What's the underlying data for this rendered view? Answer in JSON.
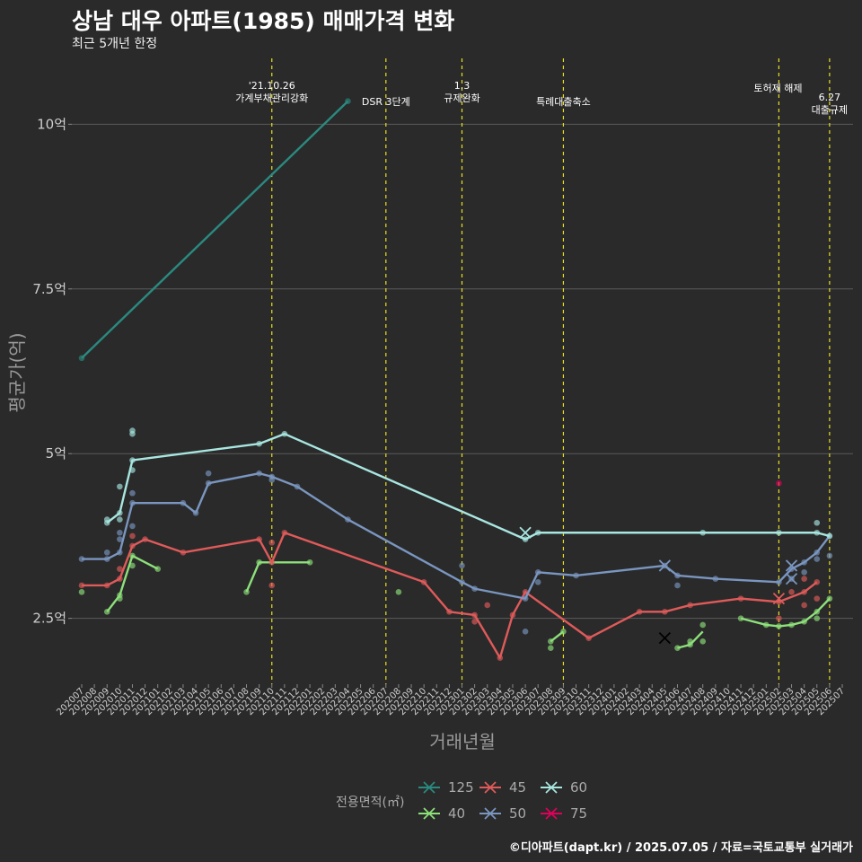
{
  "title": "상남 대우 아파트(1985) 매매가격 변화",
  "subtitle": "최근 5개년 한정",
  "caption": "©디아파트(dapt.kr) / 2025.07.05 / 자료=국토교통부 실거래가",
  "chart_data": {
    "type": "line",
    "title": "상남 대우 아파트(1985) 매매가격 변화",
    "subtitle": "최근 5개년 한정",
    "xlabel": "거래년월",
    "ylabel": "평균가(억)",
    "ylim": [
      1.5,
      11.0
    ],
    "yticks": [
      2.5,
      5,
      7.5,
      10
    ],
    "yticklabels": [
      "2.5억",
      "5억",
      "7.5억",
      "10억"
    ],
    "x_months": [
      "202007",
      "202008",
      "202009",
      "202010",
      "202011",
      "202012",
      "202101",
      "202102",
      "202103",
      "202104",
      "202105",
      "202106",
      "202107",
      "202108",
      "202109",
      "202110",
      "202111",
      "202112",
      "202201",
      "202202",
      "202203",
      "202204",
      "202205",
      "202206",
      "202207",
      "202208",
      "202209",
      "202210",
      "202211",
      "202212",
      "202301",
      "202302",
      "202303",
      "202304",
      "202305",
      "202306",
      "202307",
      "202308",
      "202309",
      "202310",
      "202311",
      "202312",
      "202401",
      "202402",
      "202403",
      "202404",
      "202405",
      "202406",
      "202407",
      "202408",
      "202409",
      "202410",
      "202411",
      "202412",
      "202501",
      "202502",
      "202503",
      "202504",
      "202505",
      "202506",
      "202507"
    ],
    "legend_title": "전용면적(㎡)",
    "events": [
      {
        "month": 15,
        "label": "'21.10.26\n가계부채관리강화"
      },
      {
        "month": 24,
        "label": "DSR 3단계"
      },
      {
        "month": 30,
        "label": "1.3\n규제완화"
      },
      {
        "month": 38,
        "label": "특례대출축소"
      },
      {
        "month": 55,
        "label": "토허제 해제"
      },
      {
        "month": 59,
        "label": "6.27\n대출규제"
      }
    ],
    "series": [
      {
        "name": "125",
        "color": "#2a8a80",
        "line": [
          [
            0,
            6.45
          ],
          [
            21,
            10.35
          ]
        ],
        "points": [
          [
            0,
            6.45
          ],
          [
            21,
            10.35
          ]
        ],
        "crosses": []
      },
      {
        "name": "40",
        "color": "#8de07a",
        "line": [
          [
            2,
            2.6
          ],
          [
            3,
            2.85
          ],
          [
            4,
            3.45
          ],
          [
            6,
            3.25
          ],
          null,
          [
            13,
            2.9
          ],
          [
            14,
            3.35
          ],
          [
            18,
            3.35
          ],
          null,
          [
            37,
            2.15
          ],
          [
            38,
            2.3
          ],
          null,
          [
            47,
            2.05
          ],
          [
            48,
            2.1
          ],
          [
            49,
            2.3
          ],
          null,
          [
            52,
            2.5
          ],
          [
            54,
            2.4
          ],
          [
            55,
            2.38
          ],
          [
            56,
            2.4
          ],
          [
            57,
            2.45
          ],
          [
            58,
            2.6
          ],
          [
            59,
            2.8
          ]
        ],
        "points": [
          [
            0,
            2.9
          ],
          [
            2,
            2.6
          ],
          [
            3,
            2.8
          ],
          [
            3,
            2.85
          ],
          [
            4,
            3.3
          ],
          [
            4,
            3.45
          ],
          [
            6,
            3.25
          ],
          [
            13,
            2.9
          ],
          [
            14,
            3.35
          ],
          [
            18,
            3.35
          ],
          [
            25,
            2.9
          ],
          [
            37,
            2.15
          ],
          [
            37,
            2.05
          ],
          [
            38,
            2.3
          ],
          [
            47,
            2.05
          ],
          [
            48,
            2.1
          ],
          [
            48,
            2.15
          ],
          [
            49,
            2.15
          ],
          [
            49,
            2.4
          ],
          [
            52,
            2.5
          ],
          [
            54,
            2.4
          ],
          [
            55,
            2.38
          ],
          [
            56,
            2.4
          ],
          [
            57,
            2.45
          ],
          [
            58,
            2.6
          ],
          [
            58,
            2.5
          ],
          [
            59,
            2.8
          ]
        ],
        "crosses": []
      },
      {
        "name": "45",
        "color": "#e05a5a",
        "line": [
          [
            0,
            3.0
          ],
          [
            2,
            3.0
          ],
          [
            3,
            3.1
          ],
          [
            4,
            3.6
          ],
          [
            5,
            3.7
          ],
          [
            8,
            3.5
          ],
          [
            14,
            3.7
          ],
          [
            15,
            3.35
          ],
          [
            16,
            3.8
          ],
          [
            27,
            3.05
          ],
          [
            29,
            2.6
          ],
          [
            31,
            2.55
          ],
          [
            33,
            1.9
          ],
          [
            34,
            2.55
          ],
          [
            35,
            2.9
          ],
          [
            40,
            2.2
          ],
          [
            44,
            2.6
          ],
          [
            46,
            2.6
          ],
          [
            48,
            2.7
          ],
          [
            52,
            2.8
          ],
          [
            55,
            2.75
          ],
          [
            57,
            2.9
          ],
          [
            58,
            3.05
          ]
        ],
        "points": [
          [
            0,
            3.0
          ],
          [
            2,
            3.0
          ],
          [
            3,
            3.1
          ],
          [
            3,
            3.25
          ],
          [
            4,
            3.6
          ],
          [
            4,
            3.75
          ],
          [
            5,
            3.7
          ],
          [
            8,
            3.5
          ],
          [
            14,
            3.7
          ],
          [
            15,
            3.65
          ],
          [
            15,
            3.35
          ],
          [
            15,
            3.0
          ],
          [
            16,
            3.8
          ],
          [
            27,
            3.05
          ],
          [
            29,
            2.6
          ],
          [
            31,
            2.55
          ],
          [
            31,
            2.45
          ],
          [
            32,
            2.7
          ],
          [
            33,
            1.9
          ],
          [
            34,
            2.55
          ],
          [
            35,
            2.9
          ],
          [
            40,
            2.2
          ],
          [
            44,
            2.6
          ],
          [
            46,
            2.6
          ],
          [
            48,
            2.7
          ],
          [
            52,
            2.8
          ],
          [
            55,
            2.75
          ],
          [
            55,
            2.5
          ],
          [
            56,
            2.9
          ],
          [
            57,
            2.9
          ],
          [
            57,
            2.7
          ],
          [
            57,
            3.1
          ],
          [
            58,
            3.05
          ],
          [
            58,
            2.8
          ]
        ],
        "crosses": [
          [
            55,
            2.8
          ]
        ]
      },
      {
        "name": "50",
        "color": "#7a96c0",
        "line": [
          [
            0,
            3.4
          ],
          [
            2,
            3.4
          ],
          [
            3,
            3.5
          ],
          [
            4,
            4.25
          ],
          [
            8,
            4.25
          ],
          [
            9,
            4.1
          ],
          [
            10,
            4.55
          ],
          [
            14,
            4.7
          ],
          [
            15,
            4.65
          ],
          [
            17,
            4.5
          ],
          [
            21,
            4.0
          ],
          [
            30,
            3.05
          ],
          [
            31,
            2.95
          ],
          [
            35,
            2.8
          ],
          [
            36,
            3.2
          ],
          [
            39,
            3.15
          ],
          [
            46,
            3.3
          ],
          [
            47,
            3.15
          ],
          [
            50,
            3.1
          ],
          [
            55,
            3.05
          ],
          [
            56,
            3.25
          ],
          [
            57,
            3.35
          ],
          [
            58,
            3.5
          ],
          [
            59,
            3.75
          ]
        ],
        "points": [
          [
            0,
            3.4
          ],
          [
            2,
            3.4
          ],
          [
            2,
            3.5
          ],
          [
            3,
            3.5
          ],
          [
            3,
            3.8
          ],
          [
            3,
            3.7
          ],
          [
            4,
            4.25
          ],
          [
            4,
            4.4
          ],
          [
            4,
            3.9
          ],
          [
            8,
            4.25
          ],
          [
            9,
            4.1
          ],
          [
            10,
            4.55
          ],
          [
            10,
            4.7
          ],
          [
            14,
            4.7
          ],
          [
            15,
            4.65
          ],
          [
            15,
            4.6
          ],
          [
            17,
            4.5
          ],
          [
            21,
            4.0
          ],
          [
            30,
            3.05
          ],
          [
            30,
            3.3
          ],
          [
            31,
            2.95
          ],
          [
            35,
            2.8
          ],
          [
            35,
            2.3
          ],
          [
            36,
            3.2
          ],
          [
            36,
            3.05
          ],
          [
            39,
            3.15
          ],
          [
            46,
            3.3
          ],
          [
            47,
            3.15
          ],
          [
            47,
            3.0
          ],
          [
            50,
            3.1
          ],
          [
            55,
            3.05
          ],
          [
            56,
            3.25
          ],
          [
            56,
            3.1
          ],
          [
            57,
            3.35
          ],
          [
            57,
            3.2
          ],
          [
            58,
            3.5
          ],
          [
            58,
            3.4
          ],
          [
            59,
            3.75
          ],
          [
            59,
            3.45
          ]
        ],
        "crosses": [
          [
            46,
            3.3
          ],
          [
            56,
            3.3
          ],
          [
            56,
            3.1
          ]
        ]
      },
      {
        "name": "60",
        "color": "#a8e6e0",
        "line": [
          [
            2,
            3.95
          ],
          [
            3,
            4.1
          ],
          [
            4,
            4.9
          ],
          [
            14,
            5.15
          ],
          [
            16,
            5.3
          ],
          [
            35,
            3.7
          ],
          [
            36,
            3.8
          ],
          [
            49,
            3.8
          ],
          [
            55,
            3.8
          ],
          [
            58,
            3.8
          ],
          [
            59,
            3.75
          ]
        ],
        "points": [
          [
            2,
            3.95
          ],
          [
            2,
            4.0
          ],
          [
            3,
            4.1
          ],
          [
            3,
            4.0
          ],
          [
            3,
            4.5
          ],
          [
            4,
            4.9
          ],
          [
            4,
            5.35
          ],
          [
            4,
            5.3
          ],
          [
            4,
            4.75
          ],
          [
            14,
            5.15
          ],
          [
            16,
            5.3
          ],
          [
            35,
            3.7
          ],
          [
            36,
            3.8
          ],
          [
            49,
            3.8
          ],
          [
            55,
            3.8
          ],
          [
            58,
            3.8
          ],
          [
            58,
            3.95
          ],
          [
            59,
            3.75
          ]
        ],
        "crosses": [
          [
            35,
            3.8
          ]
        ]
      },
      {
        "name": "75",
        "color": "#e0005a",
        "line": [],
        "points": [
          [
            55,
            4.55
          ]
        ],
        "crosses": [
          [
            46,
            2.2
          ]
        ]
      }
    ]
  }
}
